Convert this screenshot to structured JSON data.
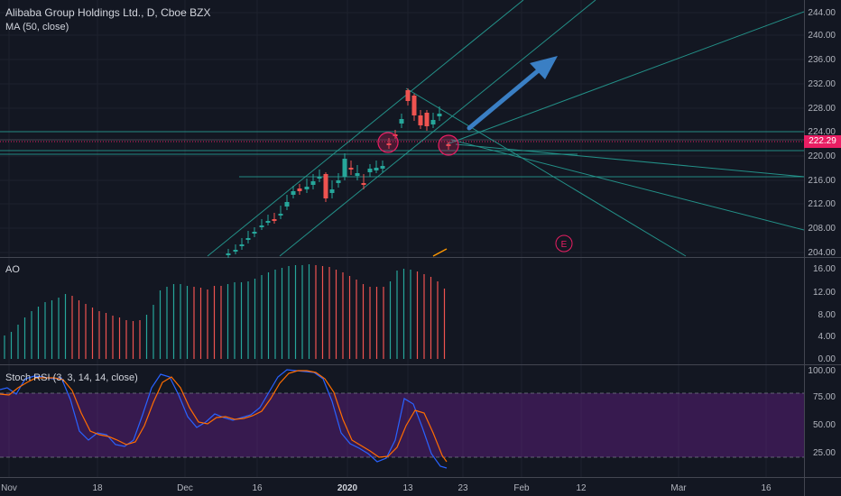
{
  "header": {
    "symbol_title": "Alibaba Group Holdings Ltd., D, Cboe BZX",
    "ma_label": "MA (50, close)"
  },
  "price_axis": {
    "ticks": [
      "244.00",
      "240.00",
      "236.00",
      "232.00",
      "228.00",
      "224.00",
      "220.00",
      "216.00",
      "212.00",
      "208.00",
      "204.00"
    ],
    "current_price": "222.29"
  },
  "ao_panel": {
    "label": "AO",
    "ticks": [
      "16.00",
      "12.00",
      "8.00",
      "4.00",
      "0.00"
    ]
  },
  "rsi_panel": {
    "label": "Stoch RSI (3, 3, 14, 14, close)",
    "ticks": [
      "100.00",
      "75.00",
      "50.00",
      "25.00"
    ]
  },
  "time_axis": {
    "labels": [
      "Nov",
      "18",
      "Dec",
      "16",
      "2020",
      "13",
      "23",
      "Feb",
      "12",
      "Mar",
      "16"
    ]
  },
  "annotations": {
    "earnings_marker": "E"
  },
  "colors": {
    "background": "#131722",
    "up": "#26a69a",
    "down": "#ef5350",
    "trendline": "#26a69a",
    "arrow": "#3a7fc4",
    "rsi_band": "#7b1fa2",
    "k_line": "#2962ff",
    "d_line": "#ff6d00",
    "price_tag": "#e91e63"
  }
}
